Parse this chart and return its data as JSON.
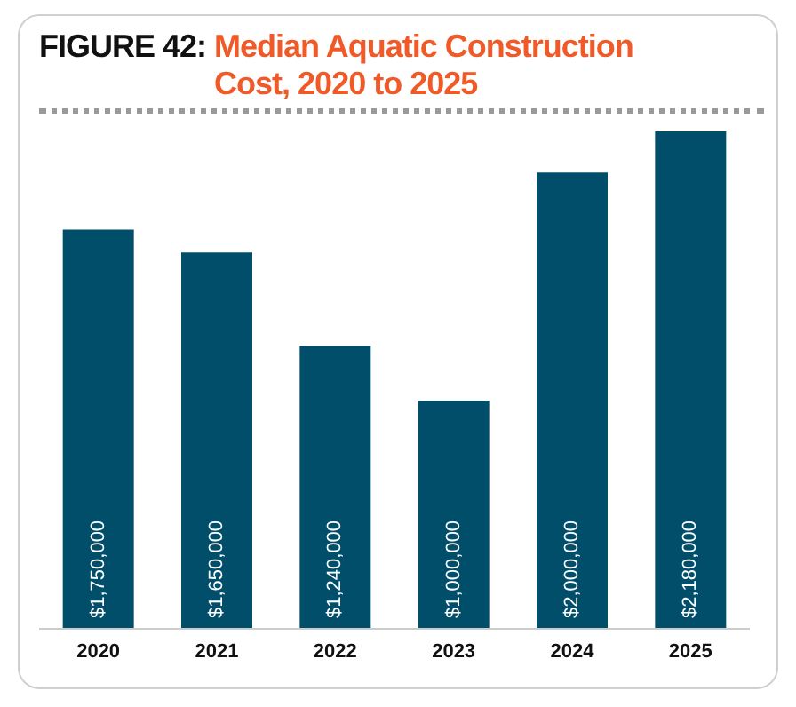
{
  "chart_data": {
    "type": "bar",
    "title": "FIGURE 42: Median Aquatic Construction Cost, 2020 to 2025",
    "categories": [
      "2020",
      "2021",
      "2022",
      "2023",
      "2024",
      "2025"
    ],
    "values": [
      1750000,
      1650000,
      1240000,
      1000000,
      2000000,
      2180000
    ],
    "value_labels": [
      "$1,750,000",
      "$1,650,000",
      "$1,240,000",
      "$1,000,000",
      "$2,000,000",
      "$2,180,000"
    ],
    "color": "#004e6a"
  }
}
